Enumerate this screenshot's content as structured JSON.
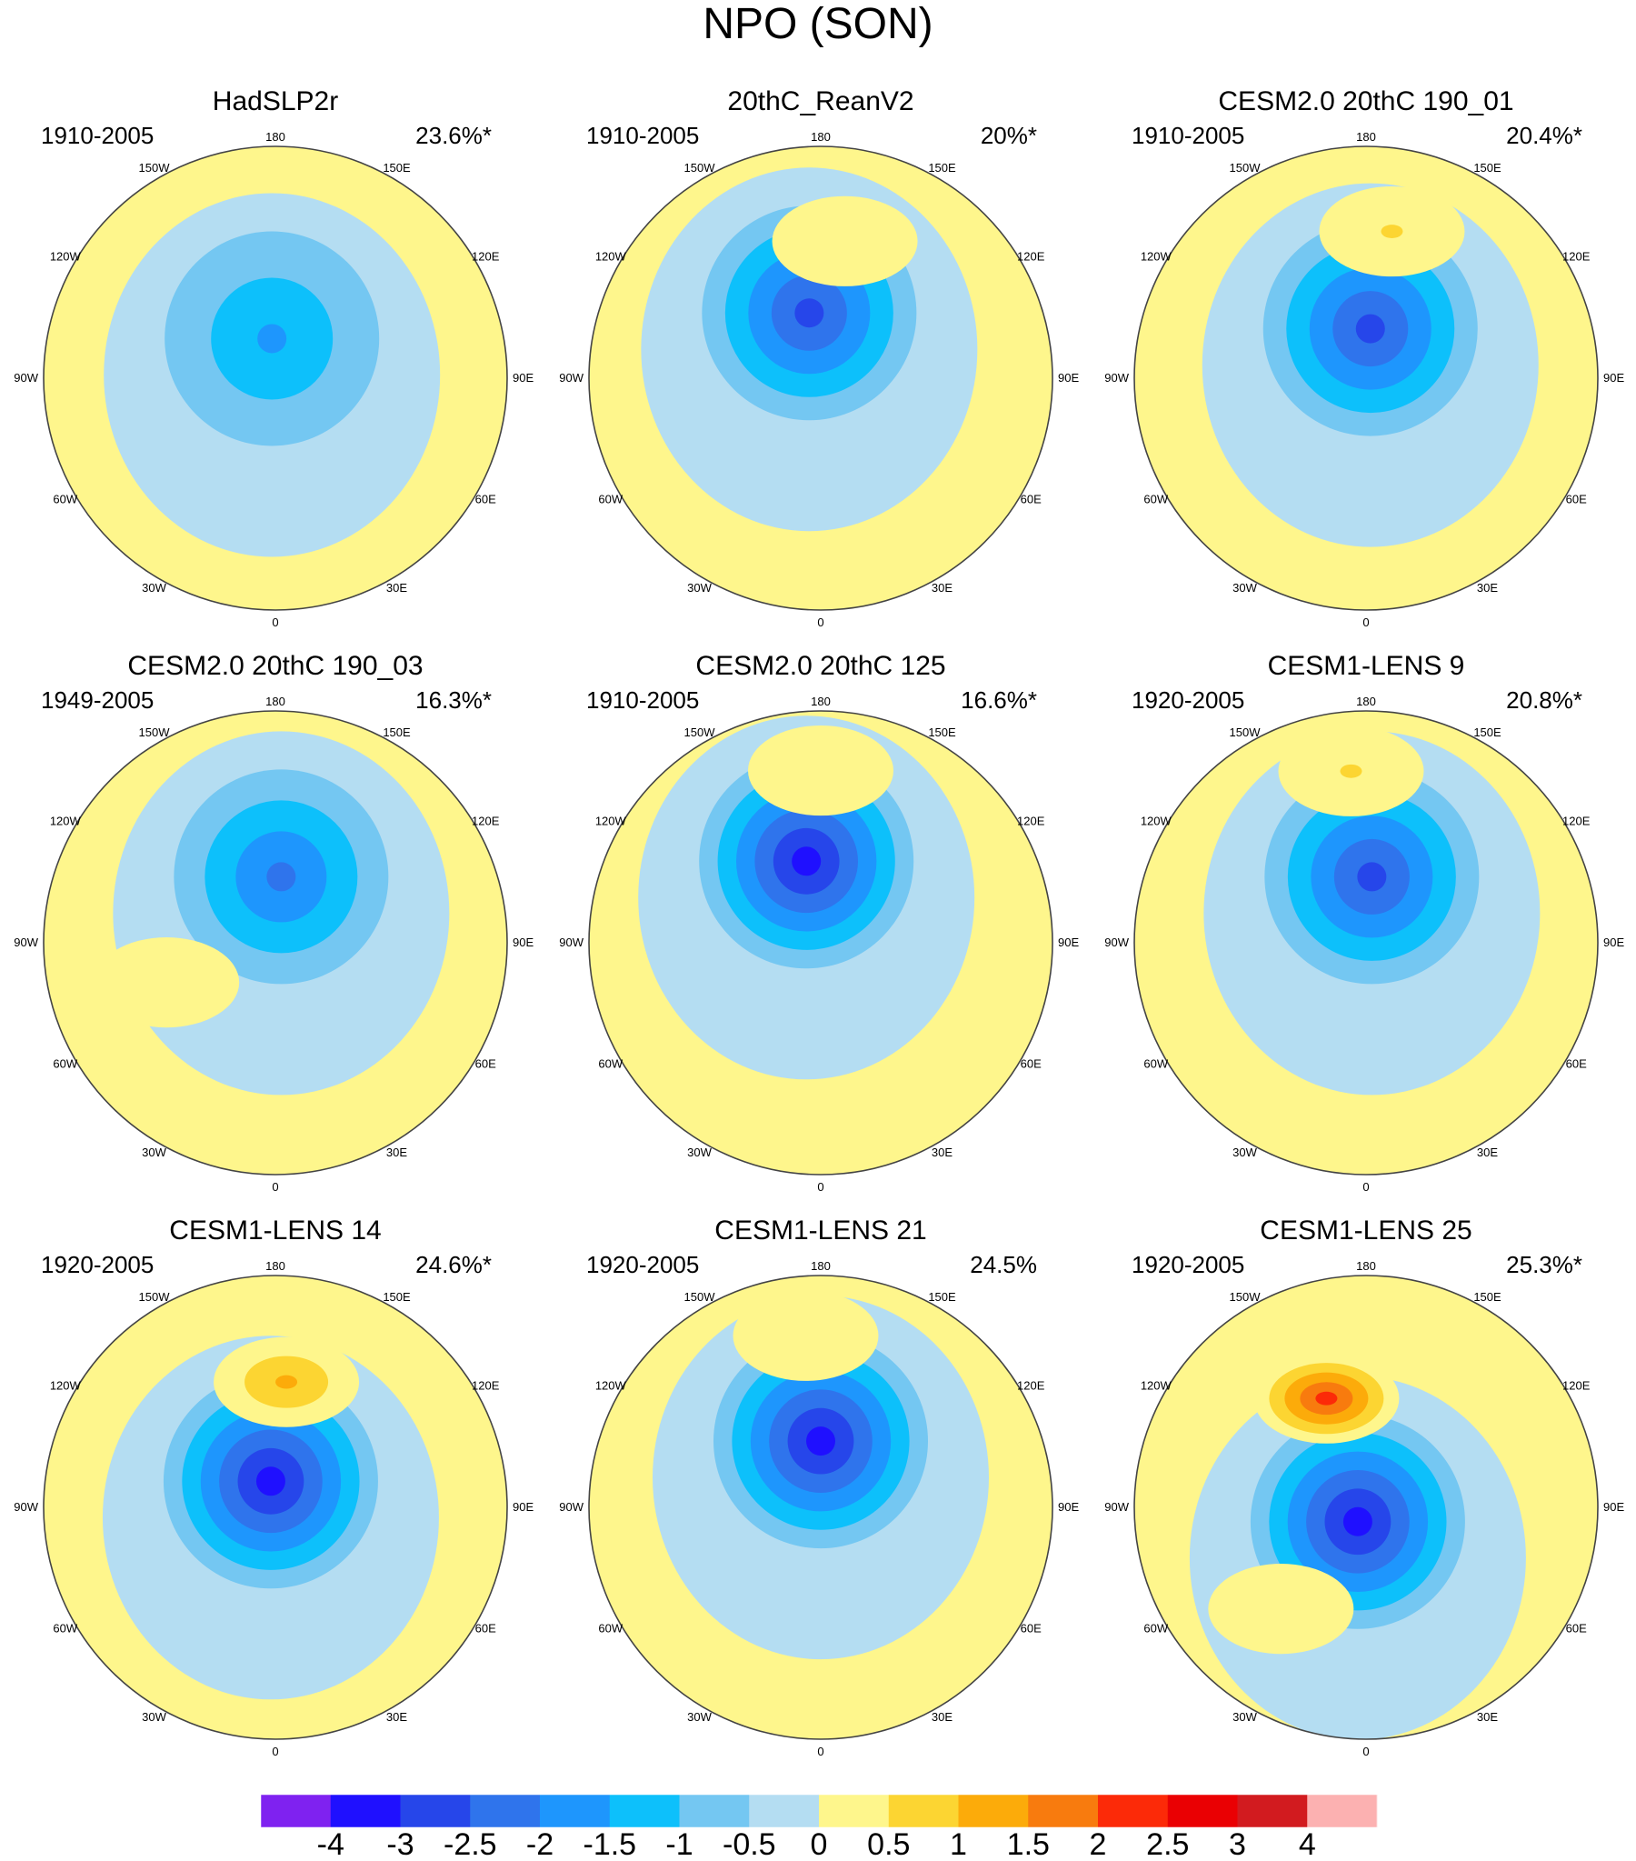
{
  "title": "NPO (SON)",
  "chart_data": {
    "type": "polar-contour-map-panels",
    "title": "NPO (SON)",
    "longitude_labels": [
      "180",
      "150E",
      "120E",
      "90E",
      "60E",
      "30E",
      "0",
      "30W",
      "60W",
      "90W",
      "120W",
      "150W"
    ],
    "panels": [
      {
        "name": "HadSLP2r",
        "period": "1910-2005",
        "variance": "23.6%*",
        "features": [
          {
            "sign": "neg",
            "level": -1.5,
            "lon": -175,
            "colat": 12
          }
        ]
      },
      {
        "name": "20thC_ReanV2",
        "period": "1910-2005",
        "variance": "20%*",
        "features": [
          {
            "sign": "neg",
            "level": -2.5,
            "lon": -170,
            "colat": 20
          },
          {
            "sign": "pos",
            "level": 0.5,
            "lon": 170,
            "colat": 42
          }
        ]
      },
      {
        "name": "CESM2.0 20thC 190_01",
        "period": "1910-2005",
        "variance": "20.4%*",
        "features": [
          {
            "sign": "neg",
            "level": -2.5,
            "lon": 175,
            "colat": 15
          },
          {
            "sign": "pos",
            "level": 1,
            "lon": 170,
            "colat": 45
          }
        ]
      },
      {
        "name": "CESM2.0 20thC 190_03",
        "period": "1949-2005",
        "variance": "16.3%*",
        "features": [
          {
            "sign": "neg",
            "level": -2,
            "lon": 175,
            "colat": 20
          },
          {
            "sign": "pos",
            "level": 0.5,
            "lon": -70,
            "colat": 35
          }
        ]
      },
      {
        "name": "CESM2.0 20thC 125",
        "period": "1910-2005",
        "variance": "16.6%*",
        "features": [
          {
            "sign": "neg",
            "level": -3,
            "lon": -170,
            "colat": 25
          },
          {
            "sign": "pos",
            "level": 0.5,
            "lon": 180,
            "colat": 52
          }
        ]
      },
      {
        "name": "CESM1-LENS 9",
        "period": "1920-2005",
        "variance": "20.8%*",
        "features": [
          {
            "sign": "neg",
            "level": -2.5,
            "lon": 175,
            "colat": 20
          },
          {
            "sign": "pos",
            "level": 1,
            "lon": -175,
            "colat": 52
          }
        ]
      },
      {
        "name": "CESM1-LENS 14",
        "period": "1920-2005",
        "variance": "24.6%*",
        "features": [
          {
            "sign": "neg",
            "level": -3,
            "lon": -170,
            "colat": 8
          },
          {
            "sign": "pos",
            "level": 1.5,
            "lon": 175,
            "colat": 38
          }
        ]
      },
      {
        "name": "CESM1-LENS 21",
        "period": "1920-2005",
        "variance": "24.5%",
        "features": [
          {
            "sign": "neg",
            "level": -3,
            "lon": -180,
            "colat": 20
          },
          {
            "sign": "pos",
            "level": 0.5,
            "lon": -175,
            "colat": 52
          }
        ]
      },
      {
        "name": "CESM1-LENS 25",
        "period": "1920-2005",
        "variance": "25.3%*",
        "features": [
          {
            "sign": "neg",
            "level": -3,
            "lon": -30,
            "colat": 5
          },
          {
            "sign": "pos",
            "level": 2.5,
            "lon": -160,
            "colat": 35
          },
          {
            "sign": "pos",
            "level": 0.5,
            "lon": -40,
            "colat": 40
          }
        ]
      }
    ],
    "colorbar": {
      "labels": [
        "-4",
        "-3",
        "-2.5",
        "-2",
        "-1.5",
        "-1",
        "-0.5",
        "0",
        "0.5",
        "1",
        "1.5",
        "2",
        "2.5",
        "3",
        "4"
      ],
      "colors": [
        "#7f22f0",
        "#1f10ff",
        "#2646ea",
        "#2f74ec",
        "#1e96fd",
        "#0dc0fb",
        "#74c7f2",
        "#b4ddf2",
        "#fef68c",
        "#fcd532",
        "#fcab0a",
        "#f87b0e",
        "#fc2a08",
        "#ea0003",
        "#d21b1f",
        "#fcb1b1"
      ]
    }
  }
}
